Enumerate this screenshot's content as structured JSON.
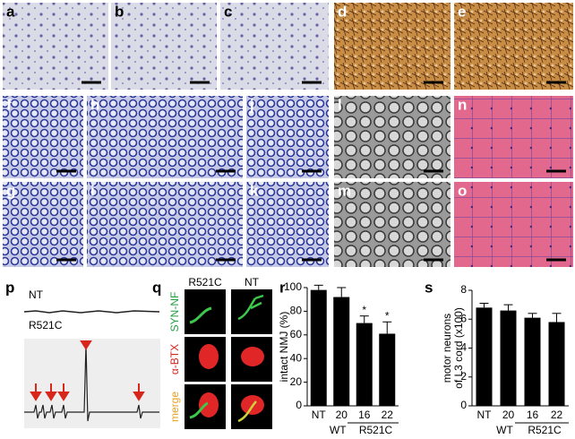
{
  "panel_letters": [
    "a",
    "b",
    "c",
    "d",
    "e",
    "f",
    "g",
    "h",
    "i",
    "j",
    "k",
    "l",
    "m",
    "n",
    "o",
    "p",
    "q",
    "r",
    "s"
  ],
  "trace": {
    "top_label": "NT",
    "bottom_label": "R521C"
  },
  "staining": {
    "columns": [
      "R521C",
      "NT"
    ],
    "rows": [
      "SYN-NF",
      "α-BTX",
      "merge"
    ]
  },
  "chart_data": [
    {
      "type": "bar",
      "ylabel": "intact NMJ (%)",
      "categories": [
        "NT",
        "20",
        "16",
        "22"
      ],
      "values": [
        98,
        92,
        70,
        61
      ],
      "errors": [
        4,
        8,
        6,
        10
      ],
      "significance": [
        null,
        null,
        "*",
        "*"
      ],
      "group_labels": [
        "WT",
        "R521C"
      ],
      "color": "#000000",
      "ylim": [
        0,
        100
      ],
      "yticks": [
        0,
        20,
        40,
        60,
        80,
        100
      ]
    },
    {
      "type": "bar",
      "ylabel_lines": [
        "motor neurons",
        "of L3 cord (x100)"
      ],
      "categories": [
        "NT",
        "20",
        "16",
        "22"
      ],
      "values": [
        6.8,
        6.6,
        6.1,
        5.8
      ],
      "errors": [
        0.3,
        0.4,
        0.3,
        0.6
      ],
      "group_labels": [
        "WT",
        "R521C"
      ],
      "color": "#000000",
      "ylim": [
        0,
        8
      ],
      "yticks": [
        0,
        2,
        4,
        6,
        8
      ]
    }
  ]
}
